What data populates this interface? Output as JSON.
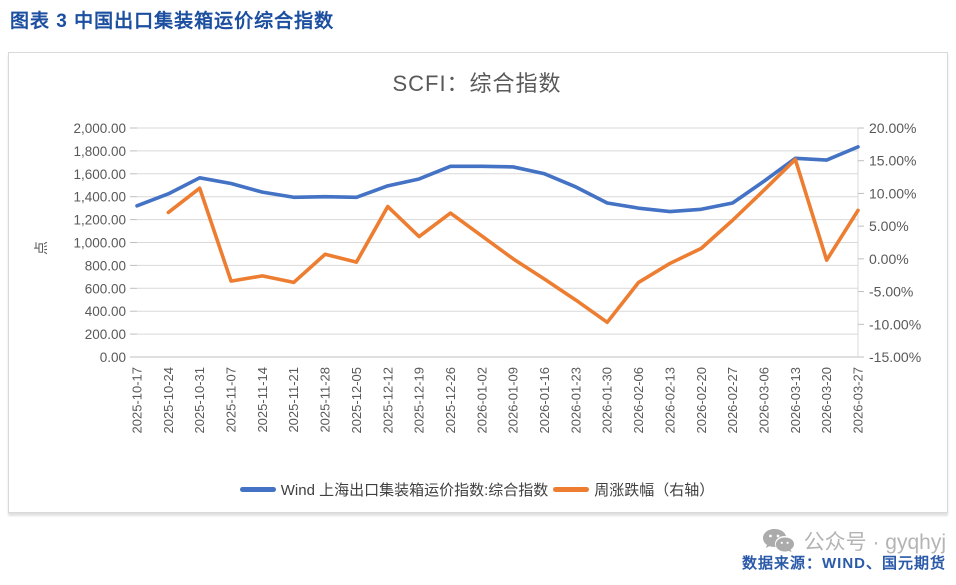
{
  "page": {
    "title": "图表 3 中国出口集装箱运价综合指数",
    "watermark": "公众号 · gyqhyj",
    "source": "数据来源：WIND、国元期货"
  },
  "chart": {
    "title": "SCFI：综合指数"
  },
  "colors": {
    "primary_series": "#4472C4",
    "secondary_series": "#ED7D31",
    "gridline": "#D9D9D9",
    "axis_line": "#BFBFBF",
    "axis_text": "#595959",
    "chart_title_text": "#595959",
    "figure_title_text": "#1D4FA0",
    "source_text": "#2B5AA9",
    "watermark_text": "#B4B4B4"
  },
  "chart_data": {
    "type": "line",
    "title": "SCFI：综合指数",
    "grid": "horizontal",
    "legend_position": "bottom",
    "categories": [
      "2025-10-17",
      "2025-10-24",
      "2025-10-31",
      "2025-11-07",
      "2025-11-14",
      "2025-11-21",
      "2025-11-28",
      "2025-12-05",
      "2025-12-12",
      "2025-12-19",
      "2025-12-26",
      "2026-01-02",
      "2026-01-09",
      "2026-01-16",
      "2026-01-23",
      "2026-01-30",
      "2026-02-06",
      "2026-02-13",
      "2026-02-20",
      "2026-02-27",
      "2026-03-06",
      "2026-03-13",
      "2026-03-20",
      "2026-03-27"
    ],
    "series": [
      {
        "name": "Wind 上海出口集装箱运价指数:综合指数",
        "axis": "left",
        "color": "#4472C4",
        "values": [
          1320,
          1425,
          1565,
          1515,
          1440,
          1395,
          1400,
          1395,
          1495,
          1555,
          1665,
          1665,
          1660,
          1600,
          1485,
          1345,
          1300,
          1270,
          1290,
          1345,
          1535,
          1735,
          1720,
          1835
        ]
      },
      {
        "name": "周涨跌幅（右轴）",
        "axis": "right",
        "color": "#ED7D31",
        "values": [
          null,
          7.1,
          10.8,
          -3.4,
          -2.6,
          -3.6,
          0.7,
          -0.5,
          8.0,
          3.4,
          7.0,
          3.5,
          0.0,
          -3.1,
          -6.3,
          -9.7,
          -3.6,
          -0.7,
          1.6,
          5.9,
          10.5,
          15.2,
          -0.2,
          7.4
        ]
      }
    ],
    "left_axis": {
      "label": "点",
      "min": 0,
      "max": 2000,
      "ticks": [
        "2,000.00",
        "1,800.00",
        "1,600.00",
        "1,400.00",
        "1,200.00",
        "1,000.00",
        "800.00",
        "600.00",
        "400.00",
        "200.00",
        "0.00"
      ]
    },
    "right_axis": {
      "min": -15,
      "max": 20,
      "ticks": [
        "20.00%",
        "15.00%",
        "10.00%",
        "5.00%",
        "0.00%",
        "-5.00%",
        "-10.00%",
        "-15.00%"
      ]
    }
  }
}
